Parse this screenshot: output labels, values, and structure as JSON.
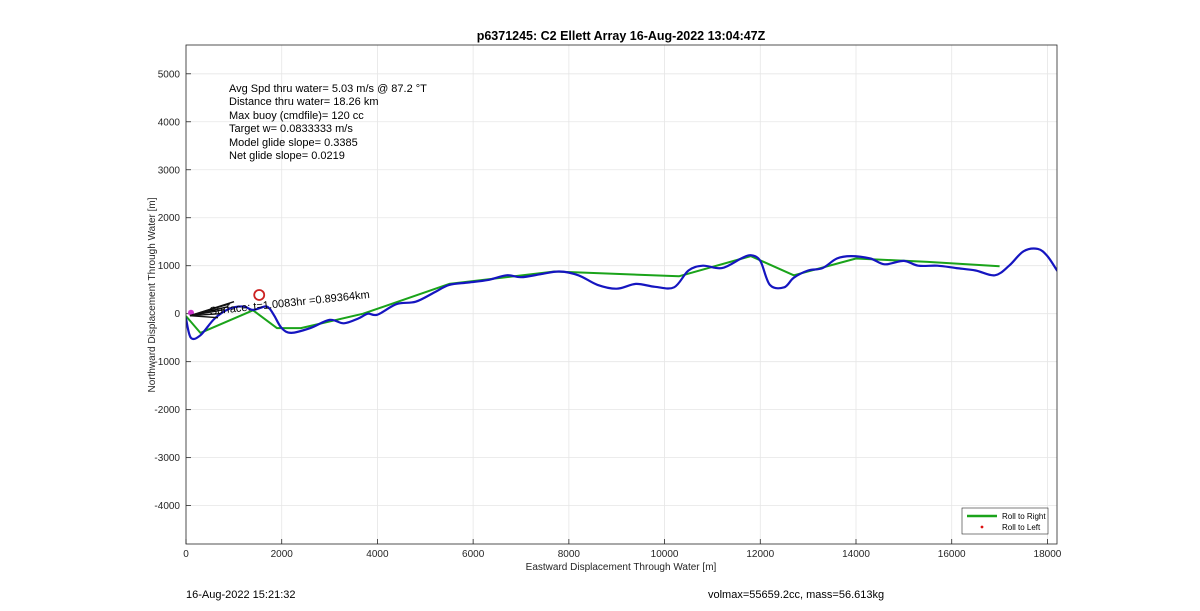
{
  "chart_data": {
    "type": "line",
    "title": "p6371245: C2 Ellett Array 16-Aug-2022 13:04:47Z",
    "xlabel": "Eastward Displacement Through Water [m]",
    "ylabel": "Northward Displacement Through Water [m]",
    "xlim": [
      0,
      18200
    ],
    "ylim": [
      -4800,
      5600
    ],
    "xticks": [
      0,
      2000,
      4000,
      6000,
      8000,
      10000,
      12000,
      14000,
      16000,
      18000
    ],
    "yticks": [
      -4000,
      -3000,
      -2000,
      -1000,
      0,
      1000,
      2000,
      3000,
      4000,
      5000
    ],
    "grid": true,
    "legend_position": "bottom-right",
    "series": [
      {
        "name": "Roll to Right",
        "color": "#1aa31a",
        "x": [
          0,
          300,
          1400,
          1900,
          2400,
          3700,
          5500,
          7700,
          10300,
          11800,
          12700,
          14000,
          15500,
          17000
        ],
        "y": [
          -50,
          -400,
          70,
          -300,
          -300,
          0,
          620,
          880,
          780,
          1200,
          800,
          1150,
          1080,
          990
        ]
      },
      {
        "name": "Roll to Left",
        "color": "#dd1111",
        "x": [],
        "y": []
      },
      {
        "name": "",
        "color": "#1515c0",
        "x": [
          0,
          100,
          300,
          600,
          900,
          1200,
          1400,
          1650,
          1750,
          1850,
          2000,
          2200,
          2600,
          3000,
          3300,
          3600,
          3800,
          4000,
          4400,
          4800,
          5200,
          5500,
          5900,
          6300,
          6700,
          7000,
          7400,
          7800,
          8200,
          8600,
          9000,
          9400,
          9800,
          10200,
          10500,
          10800,
          11200,
          11600,
          11800,
          12000,
          12200,
          12500,
          12700,
          13000,
          13300,
          13600,
          13900,
          14300,
          14600,
          15000,
          15300,
          15700,
          16100,
          16500,
          16900,
          17200,
          17500,
          17800,
          18000,
          18200
        ],
        "y": [
          -100,
          -500,
          -450,
          -100,
          100,
          150,
          80,
          150,
          100,
          -50,
          -300,
          -400,
          -300,
          -130,
          -200,
          -100,
          0,
          -20,
          200,
          250,
          450,
          600,
          650,
          700,
          800,
          760,
          820,
          880,
          800,
          600,
          520,
          620,
          560,
          550,
          900,
          1000,
          950,
          1150,
          1220,
          1100,
          600,
          550,
          750,
          900,
          950,
          1150,
          1200,
          1150,
          1030,
          1100,
          1000,
          1000,
          950,
          900,
          800,
          1000,
          1300,
          1350,
          1200,
          900
        ]
      }
    ],
    "marker": {
      "x": 1530,
      "y": 390,
      "color": "#cc2222"
    },
    "stats": [
      "Avg Spd thru water=  5.03 m/s @  87.2 °T",
      "Distance thru water= 18.26 km",
      "Max buoy (cmdfile)= 120 cc",
      "Target w= 0.0833333 m/s",
      "Model glide slope= 0.3385",
      "Net glide slope= 0.0219"
    ],
    "annotation_text": "Surface: t=1.0083hr =0.89364km"
  },
  "footer": {
    "date": "16-Aug-2022 15:21:32",
    "summary": "volmax=55659.2cc, mass=56.613kg"
  }
}
